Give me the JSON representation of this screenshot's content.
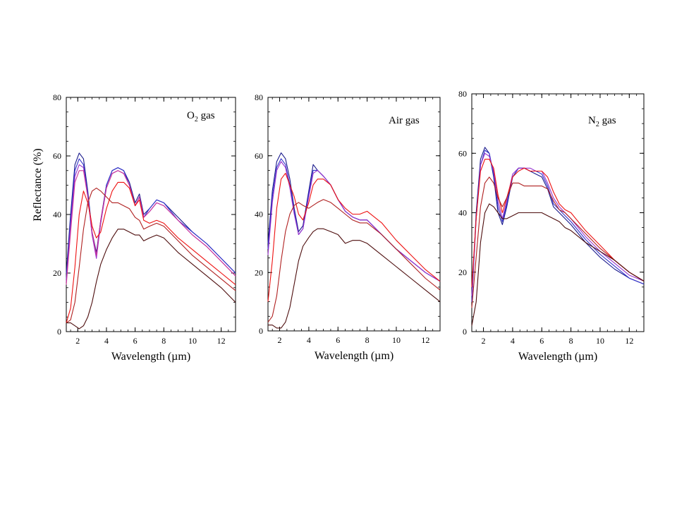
{
  "figure": {
    "ylabel": "Reflectance (%)"
  },
  "chart_data": [
    {
      "type": "line",
      "annotation": {
        "main": "O",
        "sub": "2",
        "rest": " gas"
      },
      "xlabel": "Wavelength  (µm)",
      "ylabel": "Reflectance (%)",
      "xlim": [
        1.2,
        13
      ],
      "ylim": [
        0,
        80
      ],
      "xticks": [
        2,
        4,
        6,
        8,
        10,
        12
      ],
      "yticks": [
        0,
        20,
        40,
        60,
        80
      ],
      "series": [
        {
          "color": "#1a1a8c",
          "x": [
            1.2,
            1.5,
            1.8,
            2.1,
            2.4,
            2.7,
            3.0,
            3.3,
            3.6,
            4.0,
            4.4,
            4.8,
            5.2,
            5.6,
            6.0,
            6.3,
            6.6,
            7.0,
            7.5,
            8.0,
            9.0,
            10.0,
            11.0,
            12.0,
            13.0
          ],
          "y": [
            20,
            40,
            57,
            61,
            59,
            48,
            34,
            27,
            38,
            50,
            55,
            56,
            55,
            51,
            44,
            47,
            40,
            42,
            45,
            44,
            39,
            34,
            30,
            25,
            20
          ]
        },
        {
          "color": "#3333cc",
          "x": [
            1.2,
            1.5,
            1.8,
            2.1,
            2.4,
            2.7,
            3.0,
            3.3,
            3.6,
            4.0,
            4.4,
            4.8,
            5.2,
            5.6,
            6.0,
            6.3,
            6.6,
            7.0,
            7.5,
            8.0,
            9.0,
            10.0,
            11.0,
            12.0,
            13.0
          ],
          "y": [
            18,
            38,
            55,
            59,
            57,
            47,
            33,
            26,
            37,
            50,
            55,
            56,
            55,
            50,
            43,
            46,
            39,
            42,
            45,
            44,
            38,
            34,
            30,
            25,
            20
          ]
        },
        {
          "color": "#9933cc",
          "x": [
            1.2,
            1.5,
            1.8,
            2.1,
            2.4,
            2.7,
            3.0,
            3.3,
            3.6,
            4.0,
            4.4,
            4.8,
            5.2,
            5.6,
            6.0,
            6.3,
            6.6,
            7.0,
            7.5,
            8.0,
            9.0,
            10.0,
            11.0,
            12.0,
            13.0
          ],
          "y": [
            17,
            36,
            53,
            57,
            56,
            46,
            33,
            25,
            37,
            49,
            54,
            55,
            54,
            50,
            43,
            46,
            39,
            41,
            44,
            43,
            38,
            33,
            29,
            24,
            19
          ]
        },
        {
          "color": "#cc3399",
          "x": [
            1.2,
            1.5,
            1.8,
            2.1,
            2.4,
            2.7,
            3.0,
            3.3,
            3.6,
            4.0,
            4.4,
            4.8,
            5.2,
            5.6,
            6.0,
            6.3,
            6.6,
            7.0,
            7.5,
            8.0,
            9.0,
            10.0,
            11.0,
            12.0,
            13.0
          ],
          "y": [
            16,
            34,
            51,
            55,
            55,
            46,
            34,
            26,
            38,
            49,
            54,
            55,
            54,
            50,
            43,
            46,
            39,
            41,
            44,
            43,
            38,
            33,
            29,
            24,
            19
          ]
        },
        {
          "color": "#ee1111",
          "x": [
            1.2,
            1.5,
            1.8,
            2.1,
            2.4,
            2.7,
            2.9,
            3.0,
            3.3,
            3.6,
            4.0,
            4.4,
            4.8,
            5.2,
            5.6,
            6.0,
            6.3,
            6.6,
            7.0,
            7.5,
            8.0,
            9.0,
            10.0,
            11.0,
            12.0,
            13.0
          ],
          "y": [
            3,
            8,
            22,
            40,
            48,
            44,
            39,
            36,
            32,
            34,
            42,
            48,
            51,
            51,
            49,
            43,
            45,
            38,
            37,
            38,
            37,
            32,
            28,
            24,
            20,
            16
          ]
        },
        {
          "color": "#b02020",
          "x": [
            1.2,
            1.5,
            1.8,
            2.1,
            2.4,
            2.7,
            3.0,
            3.3,
            3.6,
            4.0,
            4.4,
            4.8,
            5.2,
            5.6,
            6.0,
            6.3,
            6.6,
            7.0,
            7.5,
            8.0,
            9.0,
            10.0,
            11.0,
            12.0,
            13.0
          ],
          "y": [
            3,
            4,
            10,
            22,
            35,
            44,
            48,
            49,
            48,
            46,
            44,
            44,
            43,
            42,
            39,
            38,
            35,
            36,
            37,
            36,
            31,
            26,
            22,
            18,
            14
          ]
        },
        {
          "color": "#4d0d0d",
          "x": [
            1.2,
            1.5,
            1.8,
            2.1,
            2.4,
            2.7,
            3.0,
            3.3,
            3.6,
            4.0,
            4.4,
            4.8,
            5.2,
            5.6,
            6.0,
            6.3,
            6.6,
            7.0,
            7.5,
            8.0,
            9.0,
            10.0,
            11.0,
            12.0,
            13.0
          ],
          "y": [
            3,
            3,
            2,
            1,
            2,
            5,
            10,
            17,
            23,
            28,
            32,
            35,
            35,
            34,
            33,
            33,
            31,
            32,
            33,
            32,
            27,
            23,
            19,
            15,
            10
          ]
        }
      ]
    },
    {
      "type": "line",
      "annotation": {
        "main": "Air  gas",
        "sub": "",
        "rest": ""
      },
      "xlabel": "Wavelength  (µm)",
      "ylabel": "",
      "xlim": [
        1.2,
        13
      ],
      "ylim": [
        0,
        80
      ],
      "xticks": [
        2,
        4,
        6,
        8,
        10,
        12
      ],
      "yticks": [
        0,
        20,
        40,
        60,
        80
      ],
      "series": [
        {
          "color": "#1a1a8c",
          "x": [
            1.2,
            1.5,
            1.8,
            2.1,
            2.4,
            2.7,
            3.0,
            3.3,
            3.6,
            4.0,
            4.3,
            4.6,
            5.0,
            5.5,
            6.0,
            6.5,
            7.0,
            7.5,
            8.0,
            9.0,
            10.0,
            11.0,
            12.0,
            13.0
          ],
          "y": [
            30,
            48,
            58,
            61,
            59,
            52,
            42,
            34,
            36,
            48,
            57,
            55,
            53,
            50,
            45,
            41,
            39,
            38,
            38,
            33,
            28,
            24,
            20,
            17
          ]
        },
        {
          "color": "#3333cc",
          "x": [
            1.2,
            1.5,
            1.8,
            2.1,
            2.4,
            2.7,
            3.0,
            3.3,
            3.6,
            4.0,
            4.3,
            4.6,
            5.0,
            5.5,
            6.0,
            6.5,
            7.0,
            7.5,
            8.0,
            9.0,
            10.0,
            11.0,
            12.0,
            13.0
          ],
          "y": [
            28,
            46,
            56,
            59,
            57,
            50,
            41,
            33,
            35,
            47,
            55,
            55,
            53,
            50,
            45,
            41,
            39,
            38,
            38,
            33,
            28,
            24,
            20,
            17
          ]
        },
        {
          "color": "#9933cc",
          "x": [
            1.2,
            1.5,
            1.8,
            2.1,
            2.4,
            2.7,
            3.0,
            3.3,
            3.6,
            4.0,
            4.3,
            4.6,
            5.0,
            5.5,
            6.0,
            6.5,
            7.0,
            7.5,
            8.0,
            9.0,
            10.0,
            11.0,
            12.0,
            13.0
          ],
          "y": [
            26,
            44,
            55,
            58,
            56,
            49,
            40,
            33,
            35,
            46,
            54,
            55,
            53,
            50,
            45,
            41,
            39,
            38,
            38,
            33,
            28,
            24,
            20,
            17
          ]
        },
        {
          "color": "#ee1111",
          "x": [
            1.2,
            1.5,
            1.8,
            2.1,
            2.4,
            2.7,
            3.0,
            3.3,
            3.6,
            4.0,
            4.3,
            4.6,
            5.0,
            5.5,
            6.0,
            6.5,
            7.0,
            7.5,
            8.0,
            9.0,
            10.0,
            11.0,
            12.0,
            13.0
          ],
          "y": [
            10,
            24,
            42,
            52,
            54,
            50,
            46,
            40,
            38,
            44,
            50,
            52,
            52,
            50,
            45,
            42,
            40,
            40,
            41,
            37,
            31,
            26,
            21,
            17
          ]
        },
        {
          "color": "#b02020",
          "x": [
            1.2,
            1.5,
            1.8,
            2.1,
            2.4,
            2.7,
            3.0,
            3.3,
            3.6,
            4.0,
            4.3,
            4.6,
            5.0,
            5.5,
            6.0,
            6.5,
            7.0,
            7.5,
            8.0,
            9.0,
            10.0,
            11.0,
            12.0,
            13.0
          ],
          "y": [
            3,
            5,
            12,
            24,
            34,
            40,
            43,
            44,
            43,
            42,
            43,
            44,
            45,
            44,
            42,
            40,
            38,
            37,
            37,
            33,
            28,
            23,
            18,
            14
          ]
        },
        {
          "color": "#4d0d0d",
          "x": [
            1.2,
            1.5,
            1.8,
            2.1,
            2.4,
            2.7,
            3.0,
            3.3,
            3.6,
            4.0,
            4.3,
            4.6,
            5.0,
            5.5,
            6.0,
            6.5,
            7.0,
            7.5,
            8.0,
            9.0,
            10.0,
            11.0,
            12.0,
            13.0
          ],
          "y": [
            2,
            2,
            1,
            1,
            3,
            8,
            16,
            24,
            29,
            32,
            34,
            35,
            35,
            34,
            33,
            30,
            31,
            31,
            30,
            26,
            22,
            18,
            14,
            10
          ]
        }
      ]
    },
    {
      "type": "line",
      "annotation": {
        "main": "N",
        "sub": "2",
        "rest": " gas"
      },
      "xlabel": "Wavelength  (µm)",
      "ylabel": "",
      "xlim": [
        1.2,
        13
      ],
      "ylim": [
        0,
        80
      ],
      "xticks": [
        2,
        4,
        6,
        8,
        10,
        12
      ],
      "yticks": [
        0,
        20,
        40,
        60,
        80
      ],
      "series": [
        {
          "color": "#1a1a8c",
          "x": [
            1.2,
            1.5,
            1.8,
            2.1,
            2.4,
            2.7,
            3.0,
            3.3,
            3.6,
            4.0,
            4.4,
            4.8,
            5.2,
            5.6,
            6.0,
            6.4,
            6.8,
            7.2,
            7.6,
            8.0,
            9.0,
            10.0,
            11.0,
            12.0,
            13.0
          ],
          "y": [
            10,
            40,
            58,
            62,
            60,
            52,
            40,
            36,
            42,
            52,
            55,
            55,
            54,
            53,
            52,
            48,
            42,
            40,
            38,
            36,
            30,
            25,
            21,
            18,
            16
          ]
        },
        {
          "color": "#3333cc",
          "x": [
            1.2,
            1.5,
            1.8,
            2.1,
            2.4,
            2.7,
            3.0,
            3.3,
            3.6,
            4.0,
            4.4,
            4.8,
            5.2,
            5.6,
            6.0,
            6.4,
            6.8,
            7.2,
            7.6,
            8.0,
            9.0,
            10.0,
            11.0,
            12.0,
            13.0
          ],
          "y": [
            10,
            38,
            56,
            61,
            60,
            53,
            42,
            37,
            43,
            52,
            55,
            55,
            54,
            54,
            53,
            49,
            43,
            41,
            39,
            37,
            31,
            26,
            22,
            18,
            16
          ]
        },
        {
          "color": "#9933cc",
          "x": [
            1.2,
            1.5,
            1.8,
            2.1,
            2.4,
            2.7,
            3.0,
            3.3,
            3.6,
            4.0,
            4.4,
            4.8,
            5.2,
            5.6,
            6.0,
            6.4,
            6.8,
            7.2,
            7.6,
            8.0,
            9.0,
            10.0,
            11.0,
            12.0,
            13.0
          ],
          "y": [
            12,
            38,
            56,
            60,
            59,
            54,
            44,
            38,
            44,
            53,
            55,
            55,
            55,
            54,
            54,
            50,
            45,
            42,
            40,
            38,
            32,
            27,
            23,
            19,
            17
          ]
        },
        {
          "color": "#ee1111",
          "x": [
            1.2,
            1.5,
            1.8,
            2.1,
            2.4,
            2.7,
            3.0,
            3.3,
            3.6,
            4.0,
            4.4,
            4.8,
            5.2,
            5.6,
            6.0,
            6.4,
            6.8,
            7.2,
            7.6,
            8.0,
            9.0,
            10.0,
            11.0,
            12.0,
            13.0
          ],
          "y": [
            15,
            38,
            54,
            58,
            58,
            55,
            46,
            40,
            45,
            52,
            54,
            55,
            54,
            54,
            54,
            52,
            47,
            43,
            41,
            40,
            34,
            29,
            24,
            20,
            17
          ]
        },
        {
          "color": "#b02020",
          "x": [
            1.2,
            1.5,
            1.8,
            2.1,
            2.4,
            2.7,
            3.0,
            3.3,
            3.6,
            4.0,
            4.4,
            4.8,
            5.2,
            5.6,
            6.0,
            6.4,
            6.8,
            7.2,
            7.6,
            8.0,
            9.0,
            10.0,
            11.0,
            12.0,
            13.0
          ],
          "y": [
            8,
            25,
            42,
            50,
            52,
            50,
            45,
            42,
            45,
            50,
            50,
            49,
            49,
            49,
            49,
            48,
            44,
            41,
            40,
            38,
            33,
            28,
            24,
            20,
            17
          ]
        },
        {
          "color": "#4d0d0d",
          "x": [
            1.2,
            1.5,
            1.8,
            2.1,
            2.4,
            2.7,
            3.0,
            3.3,
            3.6,
            4.0,
            4.4,
            4.8,
            5.2,
            5.6,
            6.0,
            6.4,
            6.8,
            7.2,
            7.6,
            8.0,
            9.0,
            10.0,
            11.0,
            12.0,
            13.0
          ],
          "y": [
            2,
            10,
            30,
            40,
            43,
            42,
            40,
            38,
            38,
            39,
            40,
            40,
            40,
            40,
            40,
            39,
            38,
            37,
            35,
            34,
            30,
            27,
            24,
            20,
            17
          ]
        }
      ]
    }
  ]
}
